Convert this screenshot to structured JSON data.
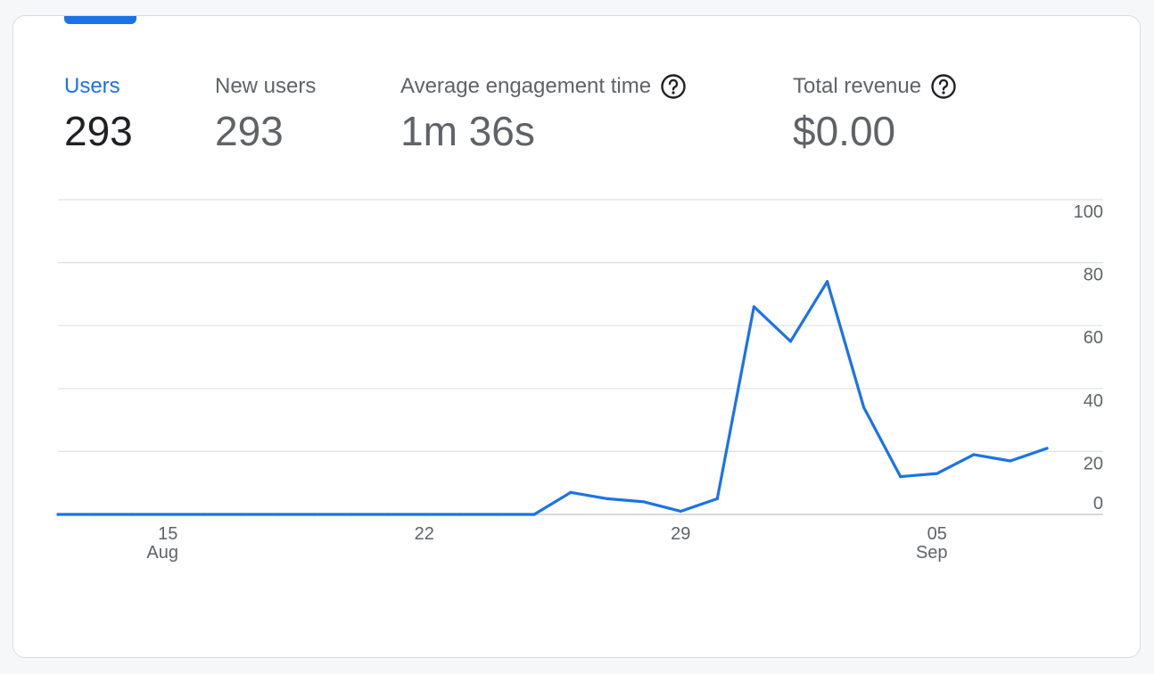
{
  "metrics": [
    {
      "label": "Users",
      "value": "293",
      "active": true
    },
    {
      "label": "New users",
      "value": "293",
      "active": false
    },
    {
      "label": "Average engagement time",
      "value": "1m 36s",
      "active": false,
      "help_icon": "help-circle-icon"
    },
    {
      "label": "Total revenue",
      "value": "$0.00",
      "active": false,
      "help_icon": "help-circle-icon"
    }
  ],
  "colors": {
    "accent": "#1a73e8",
    "line": "#1a73e8",
    "grid": "#e0e0e0",
    "text_muted": "#5f6368",
    "text_strong": "#202124"
  },
  "chart_data": {
    "type": "line",
    "title": "",
    "xlabel": "",
    "ylabel": "",
    "ylim": [
      0,
      100
    ],
    "y_ticks": [
      0,
      20,
      40,
      60,
      80,
      100
    ],
    "y_axis_side": "right",
    "grid": true,
    "x_ticks": [
      {
        "day": "15",
        "month": "Aug",
        "date": "2023-08-15"
      },
      {
        "day": "22",
        "month": "",
        "date": "2023-08-22"
      },
      {
        "day": "29",
        "month": "",
        "date": "2023-08-29"
      },
      {
        "day": "05",
        "month": "Sep",
        "date": "2023-09-05"
      }
    ],
    "series": [
      {
        "dates": [
          "2023-08-12",
          "2023-08-13",
          "2023-08-14",
          "2023-08-15",
          "2023-08-16",
          "2023-08-17",
          "2023-08-18",
          "2023-08-19",
          "2023-08-20",
          "2023-08-21",
          "2023-08-22",
          "2023-08-23",
          "2023-08-24",
          "2023-08-25",
          "2023-08-26",
          "2023-08-27",
          "2023-08-28",
          "2023-08-29",
          "2023-08-30",
          "2023-08-31",
          "2023-09-01",
          "2023-09-02",
          "2023-09-03",
          "2023-09-04",
          "2023-09-05",
          "2023-09-06",
          "2023-09-07",
          "2023-09-08"
        ],
        "values": [
          0,
          0,
          0,
          0,
          0,
          0,
          0,
          0,
          0,
          0,
          0,
          0,
          0,
          0,
          7,
          5,
          4,
          1,
          5,
          66,
          55,
          74,
          34,
          12,
          13,
          19,
          17,
          21
        ]
      }
    ]
  }
}
